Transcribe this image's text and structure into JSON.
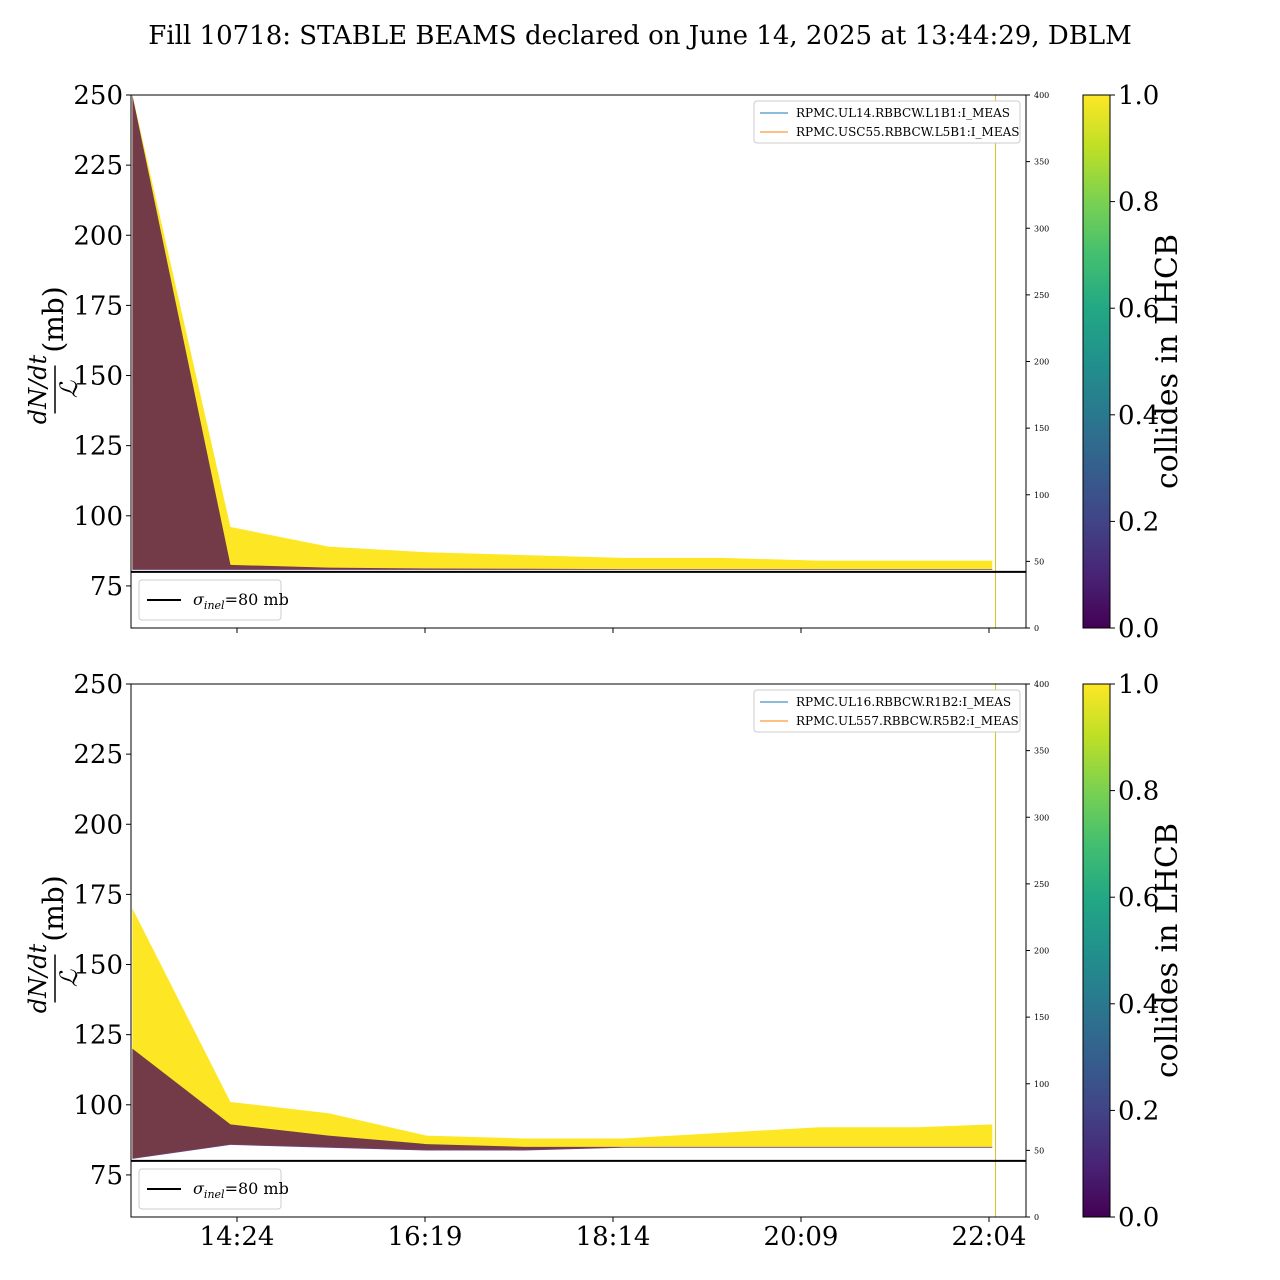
{
  "title": "Fill 10718: STABLE BEAMS declared on June 14, 2025 at 13:44:29, DBLM",
  "chart_data": [
    {
      "type": "line",
      "panel": "top",
      "ylabel_num": "dN/dt",
      "ylabel_den": "ℒ",
      "ylabel_unit": "(mb)",
      "ylim": [
        60,
        250
      ],
      "y_ticks": [
        75,
        100,
        125,
        150,
        175,
        200,
        225,
        250
      ],
      "right_ylim": [
        0,
        400
      ],
      "right_y_ticks": [
        0,
        50,
        100,
        150,
        200,
        250,
        300,
        350,
        400
      ],
      "x_ticks": [
        "14:24",
        "16:19",
        "18:14",
        "20:09",
        "22:04"
      ],
      "x_tick_labels_visible": false,
      "x_minutes": [
        800,
        860,
        920,
        980,
        1040,
        1100,
        1160,
        1220,
        1280,
        1326
      ],
      "colorscale": {
        "min": 0.0,
        "max": 1.0,
        "label": "collides in LHCB"
      },
      "series": [
        {
          "role": "upper_envelope",
          "values": [
            250,
            96,
            89,
            87,
            86,
            85,
            85,
            84,
            84,
            84
          ]
        },
        {
          "role": "lower_envelope",
          "values": [
            81,
            81,
            81,
            81,
            81,
            81,
            81,
            81,
            81,
            81
          ]
        },
        {
          "role": "non_colliding_band",
          "values": [
            250,
            82.5,
            81.5,
            81.2,
            81.1,
            81,
            81,
            81,
            81,
            81
          ]
        }
      ],
      "reference_line": {
        "y": 80,
        "label_sym": "σ",
        "label_sub": "inel",
        "label_val": "=80 mb"
      },
      "legend": {
        "position": "top-right",
        "entries": [
          {
            "label": "RPMC.UL14.RBBCW.L1B1:I_MEAS",
            "color": "#1f77b4"
          },
          {
            "label": "RPMC.USC55.RBBCW.L5B1:I_MEAS",
            "color": "#ff7f0e"
          }
        ]
      },
      "vertical_marker_minutes": 1328
    },
    {
      "type": "line",
      "panel": "bottom",
      "ylabel_num": "dN/dt",
      "ylabel_den": "ℒ",
      "ylabel_unit": "(mb)",
      "ylim": [
        60,
        250
      ],
      "y_ticks": [
        75,
        100,
        125,
        150,
        175,
        200,
        225,
        250
      ],
      "right_ylim": [
        0,
        400
      ],
      "right_y_ticks": [
        0,
        50,
        100,
        150,
        200,
        250,
        300,
        350,
        400
      ],
      "x_ticks": [
        "14:24",
        "16:19",
        "18:14",
        "20:09",
        "22:04"
      ],
      "x_minutes": [
        800,
        860,
        920,
        980,
        1040,
        1100,
        1160,
        1220,
        1280,
        1326
      ],
      "colorscale": {
        "min": 0.0,
        "max": 1.0,
        "label": "collides in LHCB"
      },
      "series": [
        {
          "role": "upper_envelope",
          "values": [
            170,
            101,
            97,
            89,
            88,
            88,
            90,
            92,
            92,
            93
          ]
        },
        {
          "role": "lower_envelope",
          "values": [
            81,
            86,
            85,
            84,
            84,
            85,
            85,
            85,
            85,
            85
          ]
        },
        {
          "role": "non_colliding_band",
          "values": [
            120,
            93,
            89,
            86,
            85,
            85,
            85,
            85,
            85,
            85
          ]
        }
      ],
      "reference_line": {
        "y": 80,
        "label_sym": "σ",
        "label_sub": "inel",
        "label_val": "=80 mb"
      },
      "legend": {
        "position": "top-right",
        "entries": [
          {
            "label": "RPMC.UL16.RBBCW.R1B2:I_MEAS",
            "color": "#1f77b4"
          },
          {
            "label": "RPMC.UL557.RBBCW.R5B2:I_MEAS",
            "color": "#ff7f0e"
          }
        ]
      },
      "vertical_marker_minutes": 1328
    }
  ],
  "colorbar_ticks": [
    "0.0",
    "0.2",
    "0.4",
    "0.6",
    "0.8",
    "1.0"
  ],
  "colors": {
    "colliding": "#fde725",
    "non_colliding": "#440154",
    "reference_line": "#000000"
  }
}
